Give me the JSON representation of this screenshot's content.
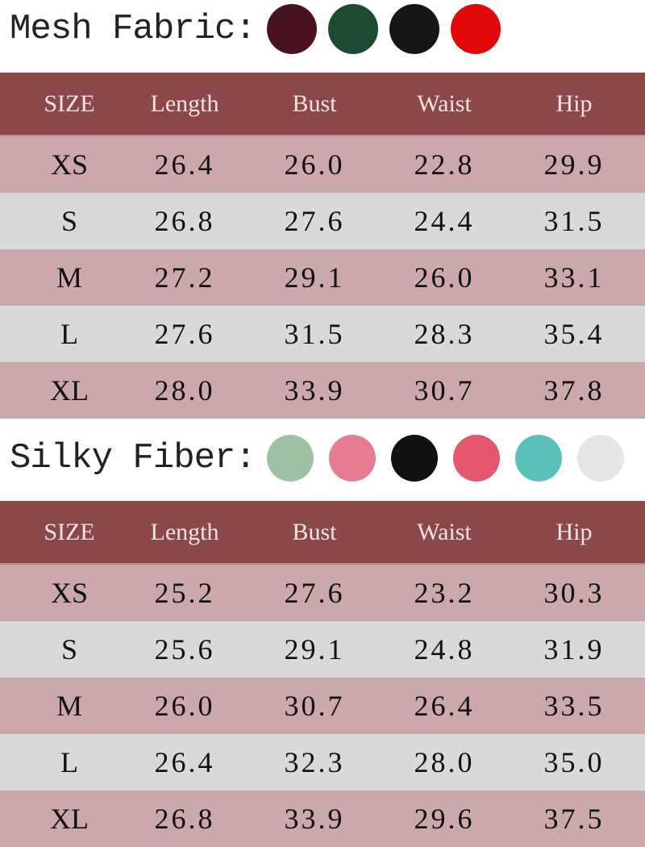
{
  "sections": [
    {
      "title": "Mesh Fabric:",
      "swatches": [
        "#4a1320",
        "#1d4a32",
        "#151515",
        "#e00808"
      ],
      "headers": [
        "SIZE",
        "Length",
        "Bust",
        "Waist",
        "Hip"
      ],
      "rows": [
        [
          "XS",
          "26.4",
          "26.0",
          "22.8",
          "29.9"
        ],
        [
          "S",
          "26.8",
          "27.6",
          "24.4",
          "31.5"
        ],
        [
          "M",
          "27.2",
          "29.1",
          "26.0",
          "33.1"
        ],
        [
          "L",
          "27.6",
          "31.5",
          "28.3",
          "35.4"
        ],
        [
          "XL",
          "28.0",
          "33.9",
          "30.7",
          "37.8"
        ]
      ]
    },
    {
      "title": "Silky Fiber:",
      "swatches": [
        "#9fbfa3",
        "#e67b92",
        "#111111",
        "#e5566f",
        "#5bc0b8",
        "#e6e6e6"
      ],
      "headers": [
        "SIZE",
        "Length",
        "Bust",
        "Waist",
        "Hip"
      ],
      "rows": [
        [
          "XS",
          "25.2",
          "27.6",
          "23.2",
          "30.3"
        ],
        [
          "S",
          "25.6",
          "29.1",
          "24.8",
          "31.9"
        ],
        [
          "M",
          "26.0",
          "30.7",
          "26.4",
          "33.5"
        ],
        [
          "L",
          "26.4",
          "32.3",
          "28.0",
          "35.0"
        ],
        [
          "XL",
          "26.8",
          "33.9",
          "29.6",
          "37.5"
        ]
      ]
    }
  ],
  "colors": {
    "header_bg": "#8a4848",
    "row_pink": "#caa8ab",
    "row_grey": "#d9d9d9"
  }
}
